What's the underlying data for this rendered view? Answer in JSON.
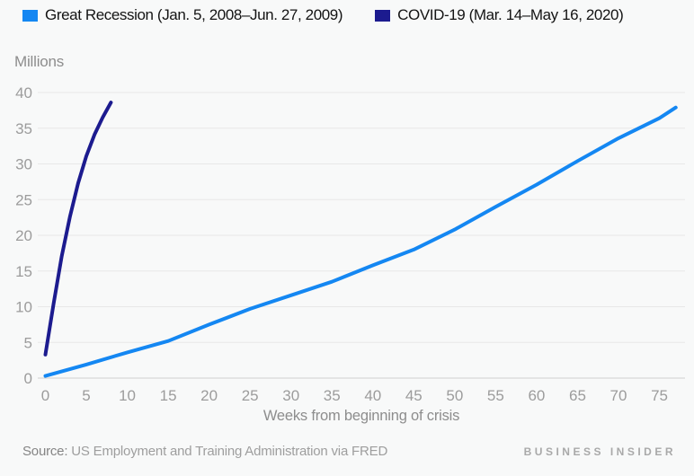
{
  "legend": {
    "items": [
      {
        "id": "great-recession",
        "label": "Great Recession (Jan. 5, 2008–Jun. 27, 2009)",
        "color": "#1487f2"
      },
      {
        "id": "covid-19",
        "label": "COVID-19 (Mar. 14–May 16, 2020)",
        "color": "#1c1b8f"
      }
    ]
  },
  "chart_data": {
    "type": "line",
    "title": "",
    "ylabel": "Millions",
    "xlabel": "Weeks from beginning of crisis",
    "xlim": [
      0,
      77.5
    ],
    "ylim": [
      0,
      40
    ],
    "x_ticks": [
      0,
      5,
      10,
      15,
      20,
      25,
      30,
      35,
      40,
      45,
      50,
      55,
      60,
      65,
      70,
      75
    ],
    "y_ticks": [
      0,
      5,
      10,
      15,
      20,
      25,
      30,
      35,
      40
    ],
    "grid": "horizontal",
    "legend_position": "top",
    "series": [
      {
        "id": "great-recession",
        "name": "Great Recession (Jan. 5, 2008–Jun. 27, 2009)",
        "color": "#1487f2",
        "x": [
          0,
          5,
          10,
          15,
          20,
          25,
          30,
          35,
          40,
          45,
          50,
          55,
          60,
          65,
          70,
          75,
          77
        ],
        "y": [
          0.3,
          1.9,
          3.6,
          5.2,
          7.5,
          9.7,
          11.6,
          13.5,
          15.8,
          18.0,
          20.8,
          24.0,
          27.1,
          30.4,
          33.6,
          36.4,
          37.9
        ]
      },
      {
        "id": "covid-19",
        "name": "COVID-19 (Mar. 14–May 16, 2020)",
        "color": "#1c1b8f",
        "x": [
          0,
          1,
          2,
          3,
          4,
          5,
          6,
          7,
          8
        ],
        "y": [
          3.3,
          10.4,
          17.1,
          22.6,
          27.3,
          31.1,
          34.1,
          36.5,
          38.6
        ]
      }
    ]
  },
  "footer": {
    "source_prefix": "Source:",
    "source_text": "US Employment and Training Administration via FRED",
    "brand": "BUSINESS INSIDER"
  },
  "colors": {
    "background": "#f8f9f9",
    "gridline": "#e8e8e8",
    "axis_line": "#cfcfcf",
    "tick_label": "#9c9c9c",
    "legend_text": "#141414",
    "muted_text": "#8d8d8d"
  }
}
